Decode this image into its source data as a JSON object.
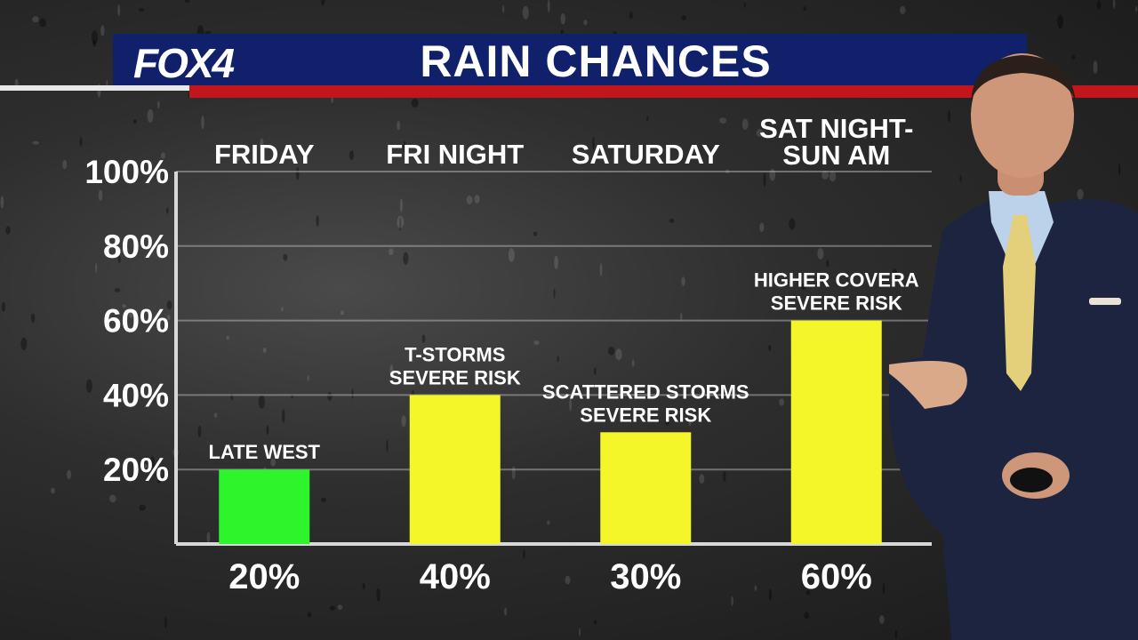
{
  "header": {
    "logo": "FOX4",
    "title": "RAIN CHANCES"
  },
  "colors": {
    "header_blue": "#10206b",
    "header_red": "#c3161c",
    "bar_green": "#2ef52b",
    "bar_yellow": "#f4f62a"
  },
  "chart_data": {
    "type": "bar",
    "title": "RAIN CHANCES",
    "categories": [
      [
        "FRIDAY"
      ],
      [
        "FRI NIGHT"
      ],
      [
        "SATURDAY"
      ],
      [
        "SAT NIGHT-",
        "SUN AM"
      ]
    ],
    "values": [
      20,
      40,
      30,
      60
    ],
    "value_labels": [
      "20%",
      "40%",
      "30%",
      "60%"
    ],
    "bar_annotations": [
      [
        "LATE WEST"
      ],
      [
        "T-STORMS",
        "SEVERE RISK"
      ],
      [
        "SCATTERED STORMS",
        "SEVERE RISK"
      ],
      [
        "HIGHER COVERA",
        "SEVERE RISK"
      ]
    ],
    "bar_colors": [
      "#2ef52b",
      "#f4f62a",
      "#f4f62a",
      "#f4f62a"
    ],
    "yticks": [
      "20%",
      "40%",
      "60%",
      "80%",
      "100%"
    ],
    "ytick_values": [
      20,
      40,
      60,
      80,
      100
    ],
    "ylim": [
      0,
      100
    ],
    "grid": true,
    "legend": "none"
  }
}
